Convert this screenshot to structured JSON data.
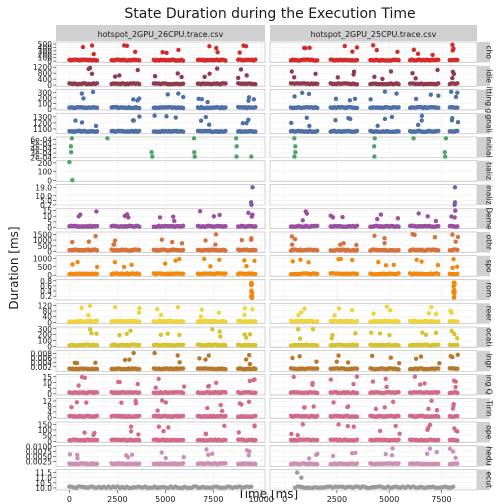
{
  "chart_data": {
    "type": "scatter",
    "title": "State Duration during the Execution Time",
    "xlabel": "Time [ms]",
    "ylabel": "Duration [ms]",
    "facet_columns": [
      "hotspot_2GPU_26CPU.trace.csv",
      "hotspot_2GPU_25CPU.trace.csv"
    ],
    "x_axis": {
      "xlim_left": [
        -700,
        10200
      ],
      "xlim_right": [
        -700,
        9200
      ],
      "ticks": [
        0,
        2500,
        5000,
        7500,
        10000
      ],
      "tick_labels": [
        "0",
        "2500",
        "5000",
        "7500",
        "10000"
      ]
    },
    "panels": [
      {
        "strip": "cho",
        "color": "#d62a2a",
        "ylim": [
          -40,
          560
        ],
        "ticks": [
          0,
          100,
          200,
          300,
          400,
          500
        ],
        "tick_labels": [
          "0",
          "100",
          "200",
          "300",
          "400",
          "500"
        ]
      },
      {
        "strip": "Idle",
        "color": "#8e3b4e",
        "ylim": [
          -80,
          1300
        ],
        "ticks": [
          0,
          400,
          800,
          1200
        ],
        "tick_labels": [
          "0",
          "400",
          "800",
          "1200"
        ]
      },
      {
        "strip": "itting g",
        "color": "#4e6fa8",
        "ylim": [
          -20,
          350
        ],
        "ticks": [
          0,
          100,
          200,
          300
        ],
        "tick_labels": [
          "0",
          "100",
          "200",
          "300"
        ]
      },
      {
        "strip": "gnali",
        "color": "#4e6fa8",
        "ylim": [
          1020,
          1360
        ],
        "ticks": [
          1100,
          1200,
          1300
        ],
        "tick_labels": [
          "1100",
          "1200",
          "1300"
        ]
      },
      {
        "strip": "Initial",
        "color": "#4ea56a",
        "ylim": [
          0.0002,
          0.00066
        ],
        "ticks": [
          0.0002,
          0.0003,
          0.0004,
          0.0005,
          0.0006
        ],
        "tick_labels": [
          "2e-04",
          "3e-04",
          "4e-04",
          "5e-04",
          "6e-04"
        ]
      },
      {
        "strip": "tializ",
        "color": "#4ea56a",
        "ylim": [
          -10,
          225
        ],
        "ticks": [
          0,
          100,
          200
        ],
        "tick_labels": [
          "0",
          "100",
          "200"
        ]
      },
      {
        "strip": "inaliz",
        "color": "#7b5aa6",
        "ylim": [
          0.15,
          22
        ],
        "ticks": [
          0.2,
          5.0,
          10.0,
          19.0
        ],
        "tick_labels": [
          "0.2",
          "5.0",
          "10.0",
          "19.0"
        ]
      },
      {
        "strip": "Deme",
        "color": "#9b4fa0",
        "ylim": [
          -1,
          17
        ],
        "ticks": [
          0,
          5,
          10,
          15
        ],
        "tick_labels": [
          "0",
          "5",
          "10",
          "15"
        ]
      },
      {
        "strip": "othr",
        "color": "#d8703a",
        "ylim": [
          -80,
          1700
        ],
        "ticks": [
          0,
          500,
          1000,
          1500
        ],
        "tick_labels": [
          "0",
          "500",
          "1000",
          "1500"
        ]
      },
      {
        "strip": "spo",
        "color": "#f2880e",
        "ylim": [
          -60,
          1150
        ],
        "ticks": [
          0,
          500,
          1000
        ],
        "tick_labels": [
          "0",
          "500",
          "1000"
        ]
      },
      {
        "strip": "rom",
        "color": "#f2880e",
        "ylim": [
          0.05,
          0.85
        ],
        "ticks": [
          0.2,
          0.4,
          0.6,
          0.8
        ],
        "tick_labels": [
          "0.2",
          "0.4",
          "0.6",
          "0.8"
        ]
      },
      {
        "strip": "reer",
        "color": "#f0d43a",
        "ylim": [
          -10,
          135
        ],
        "ticks": [
          0,
          40,
          80,
          120
        ],
        "tick_labels": [
          "0",
          "40",
          "80",
          "120"
        ]
      },
      {
        "strip": "ocati",
        "color": "#d7c22d",
        "ylim": [
          -20,
          330
        ],
        "ticks": [
          0,
          100,
          200,
          300
        ],
        "tick_labels": [
          "0",
          "100",
          "200",
          "300"
        ]
      },
      {
        "strip": "Ingr",
        "color": "#b8782a",
        "ylim": [
          0,
          0.0092
        ],
        "ticks": [
          0.002,
          0.004,
          0.006,
          0.008
        ],
        "tick_labels": [
          "0.002",
          "0.004",
          "0.006",
          "0.008"
        ]
      },
      {
        "strip": "ing Q",
        "color": "#d36a87",
        "ylim": [
          -1,
          17
        ],
        "ticks": [
          0,
          5,
          10,
          15
        ],
        "tick_labels": [
          "0",
          "5",
          "10",
          "15"
        ]
      },
      {
        "strip": "Tirin",
        "color": "#d36a87",
        "ylim": [
          -1,
          14
        ],
        "ticks": [
          0,
          4,
          8,
          12
        ],
        "tick_labels": [
          "0",
          "4",
          "8",
          "12"
        ]
      },
      {
        "strip": "ope",
        "color": "#d36a87",
        "ylim": [
          -10,
          170
        ],
        "ticks": [
          0,
          50,
          100,
          150
        ],
        "tick_labels": [
          "0",
          "50",
          "100",
          "150"
        ]
      },
      {
        "strip": "hedu",
        "color": "#cd8fb6",
        "ylim": [
          0,
          0.0105
        ],
        "ticks": [
          0.0025,
          0.005,
          0.0075,
          0.01
        ],
        "tick_labels": [
          "0.0025",
          "0.0050",
          "0.0075",
          "0.0100"
        ]
      },
      {
        "strip": "ecut",
        "color": "#9a9a9a",
        "ylim": [
          9.8,
          11.8
        ],
        "ticks": [
          10,
          10.5,
          11,
          11.5
        ],
        "tick_labels": [
          "10.0",
          "10.5",
          "11.0",
          "11.5"
        ]
      }
    ]
  }
}
